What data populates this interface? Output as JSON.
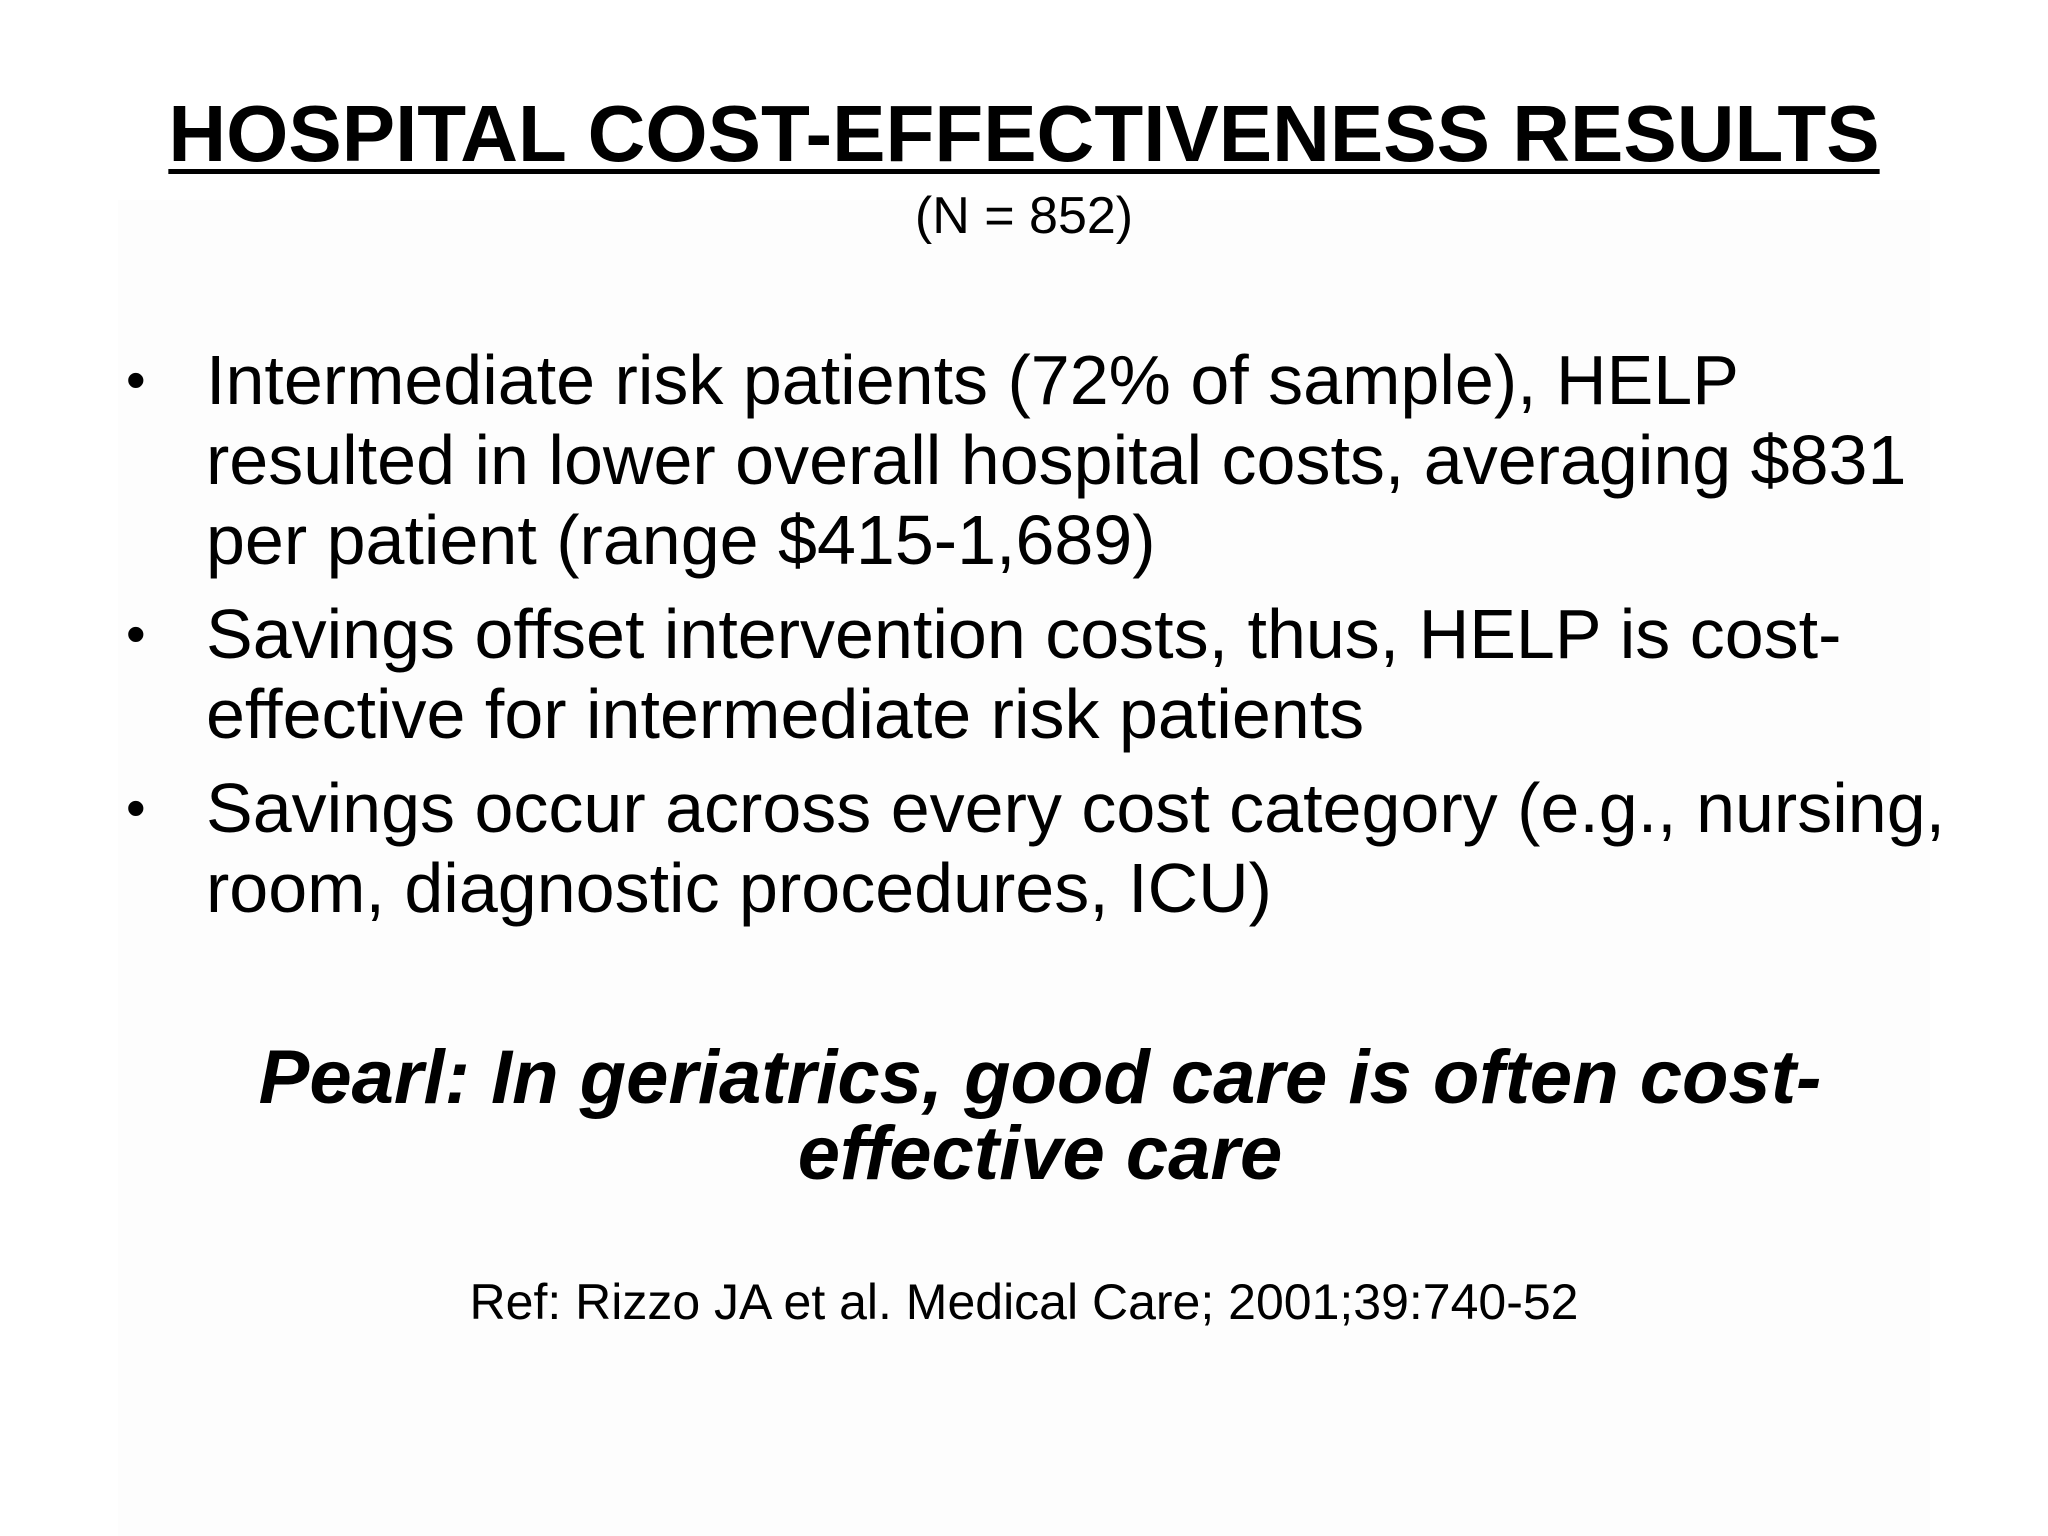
{
  "slide": {
    "title": "HOSPITAL COST-EFFECTIVENESS RESULTS",
    "subtitle": "(N = 852)",
    "bullet_symbol": "•",
    "bullets": [
      {
        "text": "Intermediate risk patients (72% of sample), HELP resulted in lower overall hospital costs, averaging $831 per patient (range $415-1,689)"
      },
      {
        "text": "Savings offset intervention costs, thus, HELP is cost-effective for intermediate risk patients"
      },
      {
        "text": "Savings occur across every cost category (e.g., nursing, room, diagnostic procedures, ICU)"
      }
    ],
    "pearl": "Pearl:  In geriatrics, good care is often cost-effective care",
    "reference": "Ref: Rizzo JA et al. Medical Care; 2001;39:740-52"
  }
}
